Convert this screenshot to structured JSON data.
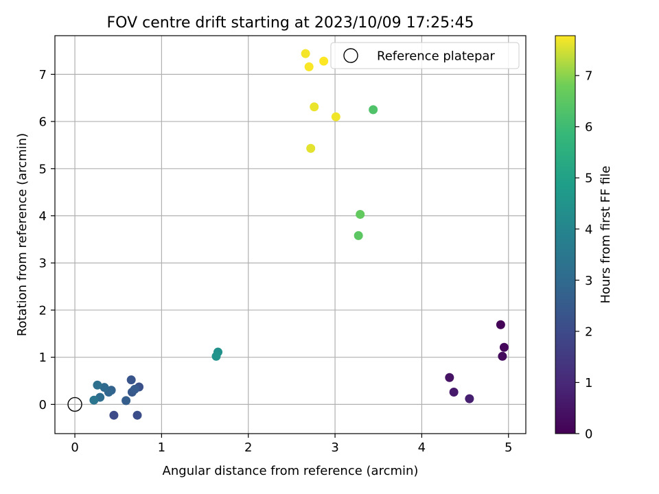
{
  "chart_data": {
    "type": "scatter",
    "title": "FOV centre drift starting at 2023/10/09 17:25:45",
    "xlabel": "Angular distance from reference (arcmin)",
    "ylabel": "Rotation from reference (arcmin)",
    "xlim": [
      -0.23,
      5.2
    ],
    "ylim": [
      -0.62,
      7.82
    ],
    "xticks": [
      0,
      1,
      2,
      3,
      4,
      5
    ],
    "yticks": [
      0,
      1,
      2,
      3,
      4,
      5,
      6,
      7
    ],
    "grid": true,
    "legend": {
      "position": "top-right",
      "entries": [
        "Reference platepar"
      ]
    },
    "reference_point": {
      "x": 0,
      "y": 0,
      "label": "Reference platepar"
    },
    "colorbar": {
      "label": "Hours from first FF file",
      "colormap": "viridis",
      "range": [
        0,
        7.78
      ],
      "ticks": [
        0,
        1,
        2,
        3,
        4,
        5,
        6,
        7
      ]
    },
    "points": [
      {
        "x": 4.91,
        "y": 1.69,
        "hours": 0.05
      },
      {
        "x": 4.95,
        "y": 1.21,
        "hours": 0.15
      },
      {
        "x": 4.93,
        "y": 1.02,
        "hours": 0.25
      },
      {
        "x": 4.32,
        "y": 0.57,
        "hours": 0.45
      },
      {
        "x": 4.37,
        "y": 0.26,
        "hours": 0.6
      },
      {
        "x": 4.55,
        "y": 0.12,
        "hours": 0.75
      },
      {
        "x": 0.45,
        "y": -0.23,
        "hours": 2.0
      },
      {
        "x": 0.72,
        "y": -0.23,
        "hours": 2.1
      },
      {
        "x": 0.74,
        "y": 0.37,
        "hours": 2.2
      },
      {
        "x": 0.65,
        "y": 0.52,
        "hours": 2.3
      },
      {
        "x": 0.66,
        "y": 0.26,
        "hours": 2.4
      },
      {
        "x": 0.69,
        "y": 0.32,
        "hours": 2.5
      },
      {
        "x": 0.59,
        "y": 0.08,
        "hours": 2.6
      },
      {
        "x": 0.42,
        "y": 0.3,
        "hours": 2.75
      },
      {
        "x": 0.39,
        "y": 0.26,
        "hours": 2.9
      },
      {
        "x": 0.34,
        "y": 0.36,
        "hours": 3.0
      },
      {
        "x": 0.29,
        "y": 0.15,
        "hours": 3.1
      },
      {
        "x": 0.26,
        "y": 0.41,
        "hours": 3.2
      },
      {
        "x": 0.22,
        "y": 0.09,
        "hours": 3.4
      },
      {
        "x": 1.65,
        "y": 1.11,
        "hours": 4.4
      },
      {
        "x": 1.63,
        "y": 1.02,
        "hours": 4.5
      },
      {
        "x": 3.27,
        "y": 3.58,
        "hours": 6.5
      },
      {
        "x": 3.29,
        "y": 4.03,
        "hours": 6.6
      },
      {
        "x": 3.44,
        "y": 6.25,
        "hours": 6.3
      },
      {
        "x": 2.72,
        "y": 5.43,
        "hours": 7.6
      },
      {
        "x": 2.76,
        "y": 6.31,
        "hours": 7.65
      },
      {
        "x": 3.01,
        "y": 6.1,
        "hours": 7.7
      },
      {
        "x": 2.66,
        "y": 7.44,
        "hours": 7.72
      },
      {
        "x": 2.7,
        "y": 7.16,
        "hours": 7.75
      },
      {
        "x": 2.87,
        "y": 7.28,
        "hours": 7.78
      }
    ]
  }
}
